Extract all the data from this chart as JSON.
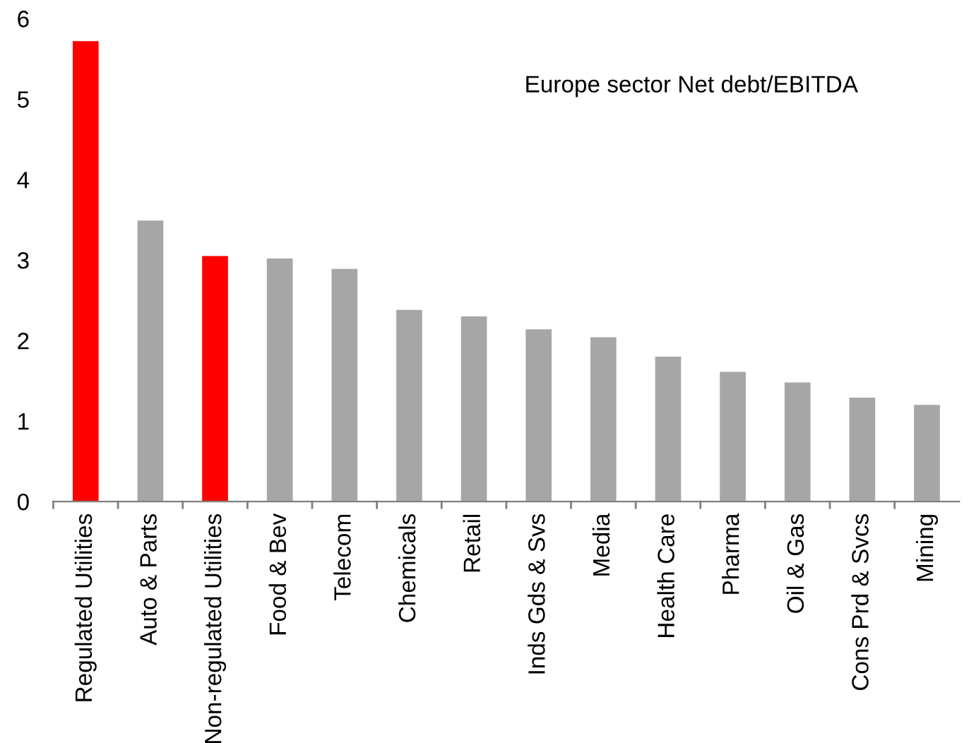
{
  "chart_data": {
    "type": "bar",
    "title": "Europe sector Net debt/EBITDA",
    "categories": [
      "Regulated Utilities",
      "Auto & Parts",
      "Non-regulated Utilities",
      "Food & Bev",
      "Telecom",
      "Chemicals",
      "Retail",
      "Inds Gds & Svs",
      "Media",
      "Health Care",
      "Pharma",
      "Oil & Gas",
      "Cons Prd & Svcs",
      "Mining"
    ],
    "values": [
      5.72,
      3.49,
      3.05,
      3.02,
      2.89,
      2.38,
      2.3,
      2.14,
      2.04,
      1.8,
      1.61,
      1.48,
      1.29,
      1.2
    ],
    "colors": [
      "#ff0000",
      "#a6a6a6",
      "#ff0000",
      "#a6a6a6",
      "#a6a6a6",
      "#a6a6a6",
      "#a6a6a6",
      "#a6a6a6",
      "#a6a6a6",
      "#a6a6a6",
      "#a6a6a6",
      "#a6a6a6",
      "#a6a6a6",
      "#a6a6a6"
    ],
    "ylim": [
      0,
      6
    ],
    "yticks": [
      0,
      1,
      2,
      3,
      4,
      5,
      6
    ],
    "grid": false,
    "legend": false
  }
}
